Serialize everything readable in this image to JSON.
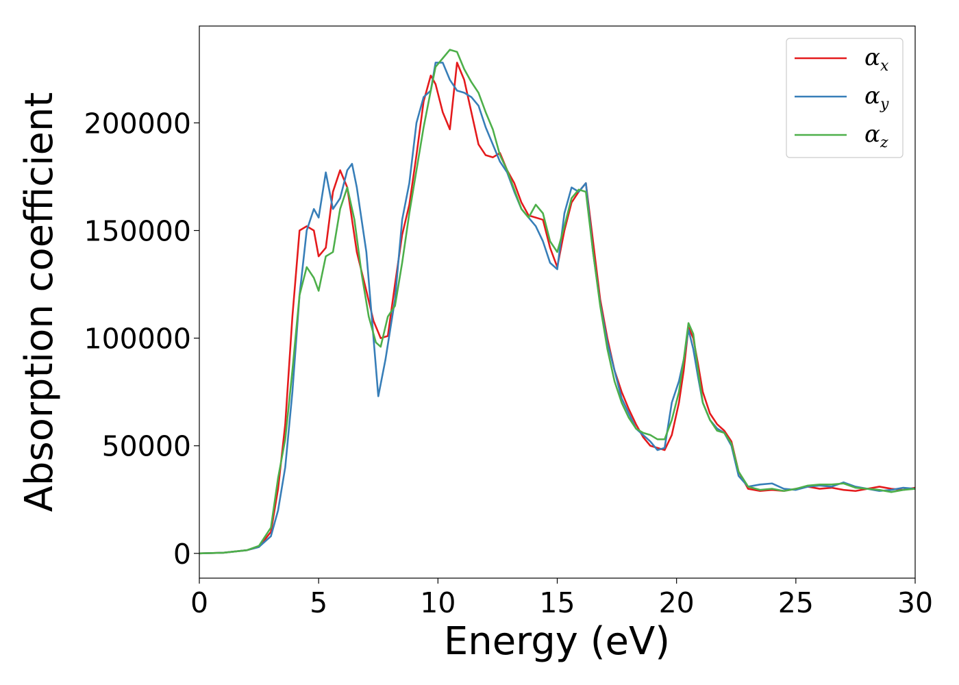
{
  "chart_data": {
    "type": "line",
    "xlabel": "Energy (eV)",
    "ylabel": "Absorption coefficient",
    "xlim": [
      0,
      30
    ],
    "ylim": [
      -11500,
      245000
    ],
    "x_ticks": [
      {
        "value": 0,
        "label": "0"
      },
      {
        "value": 5,
        "label": "5"
      },
      {
        "value": 10,
        "label": "10"
      },
      {
        "value": 15,
        "label": "15"
      },
      {
        "value": 20,
        "label": "20"
      },
      {
        "value": 25,
        "label": "25"
      },
      {
        "value": 30,
        "label": "30"
      }
    ],
    "y_ticks": [
      {
        "value": 0,
        "label": "0"
      },
      {
        "value": 50000,
        "label": "50000"
      },
      {
        "value": 100000,
        "label": "100000"
      },
      {
        "value": 150000,
        "label": "150000"
      },
      {
        "value": 200000,
        "label": "200000"
      }
    ],
    "grid": false,
    "legend_position": "top-right",
    "series": [
      {
        "name": "αx",
        "legend_main": "α",
        "legend_sub": "x",
        "color": "#e41a1c",
        "points": [
          [
            0,
            0
          ],
          [
            1,
            300
          ],
          [
            2,
            1500
          ],
          [
            2.5,
            3000
          ],
          [
            3,
            10000
          ],
          [
            3.3,
            30000
          ],
          [
            3.6,
            60000
          ],
          [
            3.9,
            110000
          ],
          [
            4.2,
            150000
          ],
          [
            4.5,
            152000
          ],
          [
            4.8,
            150000
          ],
          [
            5,
            138000
          ],
          [
            5.3,
            142000
          ],
          [
            5.6,
            168000
          ],
          [
            5.9,
            178000
          ],
          [
            6.2,
            170000
          ],
          [
            6.6,
            140000
          ],
          [
            7,
            122000
          ],
          [
            7.3,
            108000
          ],
          [
            7.6,
            100000
          ],
          [
            7.9,
            101000
          ],
          [
            8.2,
            125000
          ],
          [
            8.5,
            148000
          ],
          [
            8.8,
            162000
          ],
          [
            9.1,
            185000
          ],
          [
            9.4,
            210000
          ],
          [
            9.7,
            222000
          ],
          [
            9.9,
            218000
          ],
          [
            10.2,
            205000
          ],
          [
            10.5,
            197000
          ],
          [
            10.8,
            228000
          ],
          [
            11.1,
            220000
          ],
          [
            11.4,
            205000
          ],
          [
            11.7,
            190000
          ],
          [
            12,
            185000
          ],
          [
            12.3,
            184000
          ],
          [
            12.6,
            186000
          ],
          [
            12.9,
            178000
          ],
          [
            13.2,
            172000
          ],
          [
            13.5,
            163000
          ],
          [
            13.8,
            157000
          ],
          [
            14.1,
            156000
          ],
          [
            14.4,
            155000
          ],
          [
            14.7,
            142000
          ],
          [
            15,
            133000
          ],
          [
            15.3,
            150000
          ],
          [
            15.6,
            163000
          ],
          [
            15.9,
            168000
          ],
          [
            16.2,
            172000
          ],
          [
            16.5,
            145000
          ],
          [
            16.8,
            118000
          ],
          [
            17.1,
            100000
          ],
          [
            17.4,
            85000
          ],
          [
            17.7,
            75000
          ],
          [
            18,
            67000
          ],
          [
            18.3,
            60000
          ],
          [
            18.6,
            54000
          ],
          [
            18.9,
            50000
          ],
          [
            19.2,
            49000
          ],
          [
            19.5,
            48000
          ],
          [
            19.8,
            55000
          ],
          [
            20.1,
            70000
          ],
          [
            20.3,
            85000
          ],
          [
            20.5,
            105000
          ],
          [
            20.7,
            100000
          ],
          [
            20.9,
            88000
          ],
          [
            21.1,
            75000
          ],
          [
            21.4,
            65000
          ],
          [
            21.7,
            60000
          ],
          [
            22,
            57000
          ],
          [
            22.3,
            52000
          ],
          [
            22.6,
            38000
          ],
          [
            23,
            30000
          ],
          [
            23.5,
            29000
          ],
          [
            24,
            29500
          ],
          [
            24.5,
            29000
          ],
          [
            25,
            30000
          ],
          [
            25.5,
            31000
          ],
          [
            26,
            30000
          ],
          [
            26.5,
            30500
          ],
          [
            27,
            29500
          ],
          [
            27.5,
            29000
          ],
          [
            28,
            30000
          ],
          [
            28.5,
            31000
          ],
          [
            29,
            30000
          ],
          [
            29.5,
            29500
          ],
          [
            30,
            30500
          ]
        ]
      },
      {
        "name": "αy",
        "legend_main": "α",
        "legend_sub": "y",
        "color": "#377eb8",
        "points": [
          [
            0,
            0
          ],
          [
            1,
            300
          ],
          [
            2,
            1500
          ],
          [
            2.5,
            3000
          ],
          [
            3,
            8000
          ],
          [
            3.3,
            20000
          ],
          [
            3.6,
            40000
          ],
          [
            3.9,
            75000
          ],
          [
            4.2,
            120000
          ],
          [
            4.5,
            150000
          ],
          [
            4.8,
            160000
          ],
          [
            5,
            156000
          ],
          [
            5.3,
            177000
          ],
          [
            5.6,
            160000
          ],
          [
            5.9,
            165000
          ],
          [
            6.2,
            178000
          ],
          [
            6.4,
            181000
          ],
          [
            6.6,
            170000
          ],
          [
            7,
            140000
          ],
          [
            7.3,
            100000
          ],
          [
            7.5,
            73000
          ],
          [
            7.8,
            90000
          ],
          [
            8.2,
            118000
          ],
          [
            8.5,
            155000
          ],
          [
            8.8,
            172000
          ],
          [
            9.1,
            200000
          ],
          [
            9.4,
            212000
          ],
          [
            9.7,
            215000
          ],
          [
            9.9,
            228000
          ],
          [
            10.2,
            228000
          ],
          [
            10.5,
            220000
          ],
          [
            10.8,
            215000
          ],
          [
            11.1,
            214000
          ],
          [
            11.4,
            212000
          ],
          [
            11.7,
            208000
          ],
          [
            12,
            198000
          ],
          [
            12.3,
            190000
          ],
          [
            12.6,
            182000
          ],
          [
            12.9,
            177000
          ],
          [
            13.2,
            168000
          ],
          [
            13.5,
            160000
          ],
          [
            13.8,
            156000
          ],
          [
            14.1,
            152000
          ],
          [
            14.4,
            145000
          ],
          [
            14.7,
            135000
          ],
          [
            15,
            132000
          ],
          [
            15.3,
            158000
          ],
          [
            15.6,
            170000
          ],
          [
            15.9,
            168000
          ],
          [
            16.2,
            172000
          ],
          [
            16.5,
            140000
          ],
          [
            16.8,
            116000
          ],
          [
            17.1,
            98000
          ],
          [
            17.4,
            85000
          ],
          [
            17.7,
            72000
          ],
          [
            18,
            65000
          ],
          [
            18.3,
            58000
          ],
          [
            18.6,
            55000
          ],
          [
            18.9,
            52000
          ],
          [
            19.2,
            48000
          ],
          [
            19.5,
            49000
          ],
          [
            19.8,
            70000
          ],
          [
            20.1,
            80000
          ],
          [
            20.3,
            90000
          ],
          [
            20.5,
            104000
          ],
          [
            20.7,
            95000
          ],
          [
            20.9,
            82000
          ],
          [
            21.1,
            70000
          ],
          [
            21.4,
            62000
          ],
          [
            21.7,
            58000
          ],
          [
            22,
            56000
          ],
          [
            22.3,
            50000
          ],
          [
            22.6,
            36000
          ],
          [
            23,
            31000
          ],
          [
            23.5,
            32000
          ],
          [
            24,
            32500
          ],
          [
            24.5,
            30000
          ],
          [
            25,
            29500
          ],
          [
            25.5,
            31000
          ],
          [
            26,
            31500
          ],
          [
            26.5,
            31000
          ],
          [
            27,
            33000
          ],
          [
            27.5,
            31000
          ],
          [
            28,
            30000
          ],
          [
            28.5,
            29000
          ],
          [
            29,
            29500
          ],
          [
            29.5,
            30500
          ],
          [
            30,
            30000
          ]
        ]
      },
      {
        "name": "αz",
        "legend_main": "α",
        "legend_sub": "z",
        "color": "#4daf4a",
        "points": [
          [
            0,
            0
          ],
          [
            1,
            300
          ],
          [
            2,
            1500
          ],
          [
            2.5,
            3500
          ],
          [
            3,
            12000
          ],
          [
            3.3,
            35000
          ],
          [
            3.6,
            53000
          ],
          [
            3.9,
            85000
          ],
          [
            4.2,
            120000
          ],
          [
            4.5,
            133000
          ],
          [
            4.8,
            128000
          ],
          [
            5,
            122000
          ],
          [
            5.3,
            138000
          ],
          [
            5.6,
            140000
          ],
          [
            5.9,
            160000
          ],
          [
            6.2,
            170000
          ],
          [
            6.5,
            155000
          ],
          [
            6.8,
            130000
          ],
          [
            7.1,
            110000
          ],
          [
            7.4,
            98000
          ],
          [
            7.6,
            96000
          ],
          [
            7.9,
            110000
          ],
          [
            8.2,
            115000
          ],
          [
            8.5,
            135000
          ],
          [
            8.8,
            158000
          ],
          [
            9.1,
            178000
          ],
          [
            9.4,
            198000
          ],
          [
            9.7,
            215000
          ],
          [
            9.9,
            226000
          ],
          [
            10.2,
            230000
          ],
          [
            10.5,
            234000
          ],
          [
            10.8,
            233000
          ],
          [
            11.1,
            225000
          ],
          [
            11.4,
            219000
          ],
          [
            11.7,
            214000
          ],
          [
            12,
            205000
          ],
          [
            12.3,
            197000
          ],
          [
            12.6,
            185000
          ],
          [
            12.9,
            178000
          ],
          [
            13.2,
            169000
          ],
          [
            13.5,
            160000
          ],
          [
            13.8,
            156000
          ],
          [
            14.1,
            162000
          ],
          [
            14.4,
            158000
          ],
          [
            14.7,
            145000
          ],
          [
            15,
            140000
          ],
          [
            15.3,
            152000
          ],
          [
            15.6,
            165000
          ],
          [
            15.9,
            169000
          ],
          [
            16.2,
            168000
          ],
          [
            16.5,
            140000
          ],
          [
            16.8,
            115000
          ],
          [
            17.1,
            95000
          ],
          [
            17.4,
            80000
          ],
          [
            17.7,
            70000
          ],
          [
            18,
            63000
          ],
          [
            18.3,
            58000
          ],
          [
            18.6,
            56000
          ],
          [
            18.9,
            55000
          ],
          [
            19.2,
            53000
          ],
          [
            19.5,
            53000
          ],
          [
            19.8,
            62000
          ],
          [
            20.1,
            75000
          ],
          [
            20.3,
            90000
          ],
          [
            20.5,
            107000
          ],
          [
            20.7,
            102000
          ],
          [
            20.9,
            85000
          ],
          [
            21.1,
            70000
          ],
          [
            21.4,
            62000
          ],
          [
            21.7,
            57000
          ],
          [
            22,
            56000
          ],
          [
            22.3,
            51000
          ],
          [
            22.6,
            38000
          ],
          [
            23,
            31000
          ],
          [
            23.5,
            29500
          ],
          [
            24,
            30000
          ],
          [
            24.5,
            29000
          ],
          [
            25,
            30000
          ],
          [
            25.5,
            31500
          ],
          [
            26,
            32000
          ],
          [
            26.5,
            32000
          ],
          [
            27,
            32500
          ],
          [
            27.5,
            30500
          ],
          [
            28,
            30000
          ],
          [
            28.5,
            29500
          ],
          [
            29,
            28500
          ],
          [
            29.5,
            29500
          ],
          [
            30,
            30000
          ]
        ]
      }
    ]
  }
}
